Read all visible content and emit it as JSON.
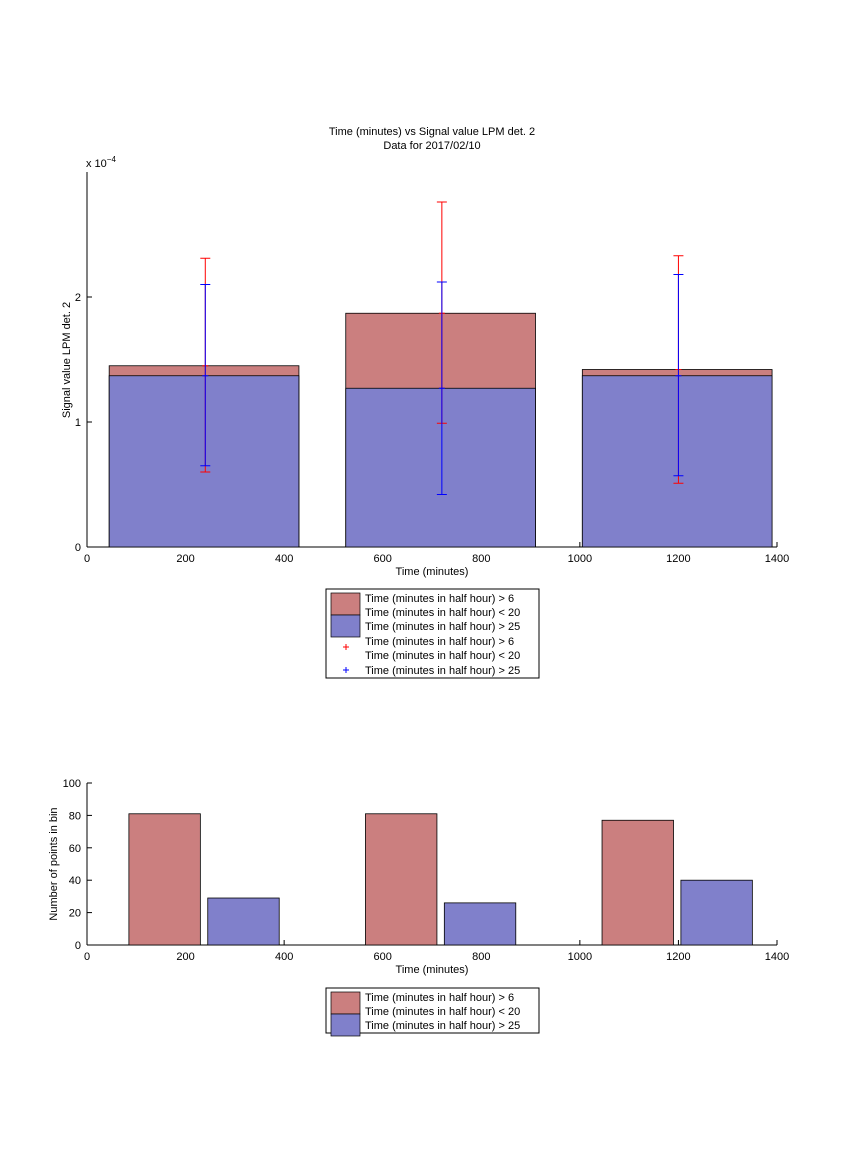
{
  "colors": {
    "series1": "#cb7f7f",
    "series2": "#8080cb",
    "err1": "#ff0000",
    "err2": "#0000ff",
    "axis": "#000000"
  },
  "chart_data": [
    {
      "type": "bar",
      "title": "Time (minutes) vs Signal value LPM det. 2",
      "subtitle": "Data for 2017/02/10",
      "xlabel": "Time (minutes)",
      "ylabel": "Signal value LPM det. 2",
      "y_exponent_label": "x 10",
      "y_exponent": "−4",
      "xlim": [
        0,
        1400
      ],
      "ylim": [
        0,
        3
      ],
      "xticks": [
        0,
        200,
        400,
        600,
        800,
        1000,
        1200,
        1400
      ],
      "yticks": [
        0,
        1,
        2
      ],
      "bars_overlaid": true,
      "bins": [
        {
          "x0": 45,
          "x1": 430,
          "center": 240
        },
        {
          "x0": 525,
          "x1": 910,
          "center": 720
        },
        {
          "x0": 1005,
          "x1": 1390,
          "center": 1200
        }
      ],
      "series": [
        {
          "name": "Time (minutes in half hour) > 6\nTime (minutes in half hour) < 20",
          "values": [
            1.45,
            1.87,
            1.42
          ]
        },
        {
          "name": "Time (minutes in half hour) > 25",
          "values": [
            1.37,
            1.27,
            1.37
          ]
        }
      ],
      "errorbars": [
        {
          "name": "Time (minutes in half hour) > 6\nTime (minutes in half hour) < 20",
          "center": [
            1.45,
            1.87,
            1.42
          ],
          "low": [
            0.6,
            0.99,
            0.51
          ],
          "high": [
            2.31,
            2.76,
            2.33
          ]
        },
        {
          "name": "Time (minutes in half hour) > 25",
          "center": [
            1.37,
            1.27,
            1.37
          ],
          "low": [
            0.65,
            0.42,
            0.57
          ],
          "high": [
            2.1,
            2.12,
            2.18
          ]
        }
      ],
      "legend": [
        "Time (minutes in half hour) > 6",
        "Time (minutes in half hour) < 20",
        "Time (minutes in half hour) > 25",
        "Time (minutes in half hour) > 6",
        "Time (minutes in half hour) < 20",
        "Time (minutes in half hour) > 25"
      ],
      "legend_placement": "below"
    },
    {
      "type": "bar",
      "xlabel": "Time (minutes)",
      "ylabel": "Number of points in bin",
      "xlim": [
        0,
        1400
      ],
      "ylim": [
        0,
        100
      ],
      "xticks": [
        0,
        200,
        400,
        600,
        800,
        1000,
        1200,
        1400
      ],
      "yticks": [
        0,
        20,
        40,
        60,
        80,
        100
      ],
      "bars": [
        {
          "x0": 85,
          "x1": 230,
          "value": 81,
          "series": 0
        },
        {
          "x0": 245,
          "x1": 390,
          "value": 29,
          "series": 1
        },
        {
          "x0": 565,
          "x1": 710,
          "value": 81,
          "series": 0
        },
        {
          "x0": 725,
          "x1": 870,
          "value": 26,
          "series": 1
        },
        {
          "x0": 1045,
          "x1": 1190,
          "value": 77,
          "series": 0
        },
        {
          "x0": 1205,
          "x1": 1350,
          "value": 40,
          "series": 1
        }
      ],
      "series": [
        {
          "name": "Time (minutes in half hour) > 6\nTime (minutes in half hour) < 20",
          "values": [
            81,
            81,
            77
          ]
        },
        {
          "name": "Time (minutes in half hour) > 25",
          "values": [
            29,
            26,
            40
          ]
        }
      ],
      "legend": [
        "Time (minutes in half hour) > 6",
        "Time (minutes in half hour) < 20",
        "Time (minutes in half hour) > 25"
      ],
      "legend_placement": "below"
    }
  ]
}
